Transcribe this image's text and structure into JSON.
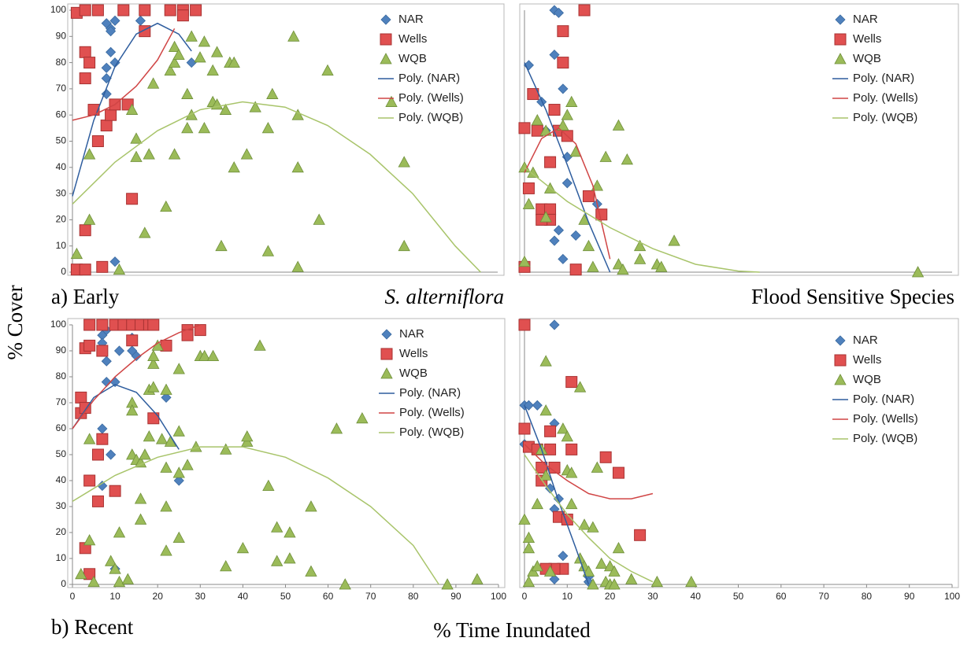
{
  "ylabel": "% Cover",
  "xlabel": "% Time Inundated",
  "row_labels": [
    "a) Early",
    "b) Recent"
  ],
  "chart_data": [
    {
      "type": "scatter",
      "title": "S. alterniflora",
      "title_style": "italic",
      "xlim": [
        0,
        100
      ],
      "ylim": [
        0,
        100
      ],
      "yticks": [
        0,
        10,
        20,
        30,
        40,
        50,
        60,
        70,
        80,
        90,
        100
      ],
      "legend": "upper right",
      "series": [
        {
          "name": "NAR",
          "color": "#4f81bd",
          "marker": "diamond",
          "x": [
            8,
            9,
            10,
            9,
            8,
            8,
            9,
            10,
            8,
            16,
            28,
            10
          ],
          "values": [
            95,
            93,
            96,
            92,
            74,
            78,
            84,
            80,
            68,
            96,
            80,
            4
          ]
        },
        {
          "name": "Wells",
          "color": "#e05050",
          "marker": "square",
          "x": [
            1,
            3,
            6,
            12,
            17,
            23,
            26,
            26,
            29,
            3,
            4,
            3,
            5,
            6,
            8,
            9,
            10,
            13,
            17,
            14,
            3,
            1,
            3,
            7
          ],
          "values": [
            99,
            100,
            100,
            100,
            100,
            100,
            100,
            98,
            100,
            84,
            80,
            74,
            62,
            50,
            56,
            60,
            64,
            64,
            92,
            28,
            16,
            1,
            1,
            2
          ]
        },
        {
          "name": "WQB",
          "color": "#9bbb59",
          "marker": "triangle",
          "x": [
            1,
            4,
            4,
            11,
            14,
            15,
            15,
            17,
            18,
            19,
            22,
            23,
            24,
            24,
            25,
            24,
            27,
            28,
            27,
            28,
            30,
            31,
            33,
            33,
            34,
            34,
            35,
            37,
            38,
            38,
            41,
            43,
            46,
            46,
            47,
            52,
            53,
            53,
            53,
            58,
            60,
            75,
            78,
            78,
            31,
            36
          ],
          "values": [
            7,
            20,
            45,
            1,
            62,
            51,
            44,
            15,
            45,
            72,
            25,
            77,
            86,
            80,
            83,
            45,
            68,
            60,
            55,
            90,
            82,
            88,
            77,
            65,
            64,
            84,
            10,
            80,
            80,
            40,
            45,
            63,
            55,
            8,
            68,
            90,
            60,
            40,
            2,
            20,
            77,
            65,
            42,
            10,
            55,
            62
          ]
        },
        {
          "name": "Poly. (NAR)",
          "color": "#2e5d9e",
          "marker": "line",
          "x": [
            0,
            5,
            10,
            15,
            20,
            25,
            28
          ],
          "values": [
            29,
            57.9,
            78.5,
            90.9,
            95,
            90.9,
            84.4
          ]
        },
        {
          "name": "Poly. (Wells)",
          "color": "#d04545",
          "marker": "line",
          "x": [
            0,
            5,
            10,
            15,
            20,
            24
          ],
          "values": [
            58,
            60,
            64,
            71,
            81,
            93
          ]
        },
        {
          "name": "Poly. (WQB)",
          "color": "#a8c46a",
          "marker": "line",
          "x": [
            0,
            10,
            20,
            30,
            40,
            50,
            60,
            70,
            80,
            90,
            96
          ],
          "values": [
            26,
            42,
            54,
            62,
            65,
            63,
            56,
            45,
            30,
            10,
            0
          ]
        }
      ]
    },
    {
      "type": "scatter",
      "title": "Flood Sensitive Species",
      "xlim": [
        0,
        100
      ],
      "ylim": [
        0,
        100
      ],
      "legend": "upper right",
      "series": [
        {
          "name": "NAR",
          "color": "#4f81bd",
          "marker": "diamond",
          "x": [
            7,
            8,
            7,
            1,
            4,
            9,
            10,
            8,
            9,
            7,
            12,
            17,
            10,
            5
          ],
          "values": [
            100,
            99,
            83,
            79,
            65,
            70,
            34,
            16,
            5,
            12,
            14,
            26,
            44,
            54
          ]
        },
        {
          "name": "Wells",
          "color": "#e05050",
          "marker": "square",
          "x": [
            14,
            9,
            9,
            0,
            2,
            7,
            3,
            8,
            10,
            6,
            1,
            4,
            6,
            6,
            4,
            15,
            18,
            12,
            0
          ],
          "values": [
            100,
            92,
            80,
            55,
            68,
            62,
            54,
            54,
            52,
            42,
            32,
            24,
            24,
            20,
            20,
            29,
            22,
            1,
            2
          ]
        },
        {
          "name": "WQB",
          "color": "#9bbb59",
          "marker": "triangle",
          "x": [
            0,
            1,
            0,
            2,
            3,
            5,
            6,
            5,
            9,
            10,
            11,
            12,
            19,
            17,
            22,
            24,
            14,
            15,
            16,
            22,
            23,
            27,
            27,
            31,
            32,
            35,
            92
          ],
          "values": [
            4,
            26,
            40,
            38,
            58,
            54,
            32,
            21,
            56,
            60,
            65,
            46,
            44,
            33,
            56,
            43,
            20,
            10,
            2,
            3,
            1,
            10,
            5,
            3,
            2,
            12,
            0
          ]
        },
        {
          "name": "Poly. (NAR)",
          "color": "#2e5d9e",
          "marker": "line",
          "x": [
            0,
            5,
            10,
            15,
            20
          ],
          "values": [
            80,
            62,
            41,
            19,
            0
          ]
        },
        {
          "name": "Poly. (Wells)",
          "color": "#d04545",
          "marker": "line",
          "x": [
            0,
            4,
            8,
            12,
            16,
            20
          ],
          "values": [
            38,
            51,
            55,
            49,
            33,
            5
          ]
        },
        {
          "name": "Poly. (WQB)",
          "color": "#a8c46a",
          "marker": "line",
          "x": [
            0,
            10,
            20,
            30,
            40,
            50,
            55
          ],
          "values": [
            40,
            27,
            17,
            9,
            3,
            0.4,
            0
          ]
        }
      ]
    },
    {
      "type": "scatter",
      "xlim": [
        0,
        100
      ],
      "ylim": [
        0,
        100
      ],
      "yticks": [
        0,
        10,
        20,
        30,
        40,
        50,
        60,
        70,
        80,
        90,
        100
      ],
      "xticks": [
        0,
        10,
        20,
        30,
        40,
        50,
        60,
        70,
        80,
        90,
        100
      ],
      "legend": "upper right",
      "series": [
        {
          "name": "NAR",
          "color": "#4f81bd",
          "marker": "diamond",
          "x": [
            8,
            7,
            7,
            8,
            8,
            10,
            11,
            14,
            14,
            15,
            22,
            7,
            7,
            9,
            25,
            10
          ],
          "values": [
            98,
            96,
            93,
            86,
            78,
            78,
            90,
            95,
            90,
            88,
            72,
            60,
            38,
            50,
            40,
            6
          ]
        },
        {
          "name": "Wells",
          "color": "#e05050",
          "marker": "square",
          "x": [
            2,
            2,
            3,
            3,
            4,
            4,
            7,
            7,
            10,
            12,
            14,
            16,
            18,
            19,
            14,
            22,
            27,
            27,
            30,
            19,
            7,
            6,
            6,
            4,
            10,
            3,
            4
          ],
          "values": [
            66,
            72,
            68,
            91,
            92,
            100,
            90,
            100,
            100,
            100,
            100,
            100,
            100,
            100,
            94,
            92,
            98,
            96,
            98,
            64,
            56,
            50,
            32,
            40,
            36,
            14,
            4
          ]
        },
        {
          "name": "WQB",
          "color": "#9bbb59",
          "marker": "triangle",
          "x": [
            2,
            4,
            4,
            5,
            9,
            10,
            11,
            11,
            13,
            14,
            14,
            14,
            15,
            16,
            16,
            16,
            17,
            18,
            18,
            19,
            19,
            19,
            20,
            21,
            22,
            22,
            22,
            22,
            23,
            25,
            25,
            25,
            25,
            27,
            29,
            30,
            31,
            33,
            36,
            36,
            40,
            41,
            41,
            44,
            46,
            48,
            48,
            51,
            51,
            56,
            56,
            62,
            64,
            68,
            88,
            95
          ],
          "values": [
            4,
            17,
            56,
            1,
            9,
            6,
            1,
            20,
            2,
            50,
            70,
            67,
            48,
            33,
            25,
            47,
            50,
            57,
            75,
            76,
            85,
            88,
            92,
            56,
            13,
            30,
            45,
            75,
            55,
            43,
            18,
            59,
            83,
            46,
            53,
            88,
            88,
            88,
            52,
            7,
            14,
            55,
            57,
            92,
            38,
            22,
            9,
            10,
            20,
            30,
            5,
            60,
            0,
            64,
            0,
            2
          ]
        },
        {
          "name": "Poly. (NAR)",
          "color": "#2e5d9e",
          "marker": "line",
          "x": [
            0,
            5,
            10,
            15,
            20,
            25
          ],
          "values": [
            60,
            72,
            77,
            74,
            65,
            52
          ]
        },
        {
          "name": "Poly. (Wells)",
          "color": "#d04545",
          "marker": "line",
          "x": [
            0,
            5,
            10,
            15,
            20,
            25,
            30
          ],
          "values": [
            60,
            71,
            80,
            87,
            93,
            97,
            100
          ]
        },
        {
          "name": "Poly. (WQB)",
          "color": "#a8c46a",
          "marker": "line",
          "x": [
            0,
            10,
            20,
            30,
            40,
            50,
            60,
            70,
            80,
            86
          ],
          "values": [
            32,
            42,
            49,
            53,
            53,
            49,
            41,
            30,
            15,
            0
          ]
        }
      ]
    },
    {
      "type": "scatter",
      "xlim": [
        0,
        100
      ],
      "ylim": [
        0,
        100
      ],
      "xticks": [
        0,
        10,
        20,
        30,
        40,
        50,
        60,
        70,
        80,
        90,
        100
      ],
      "legend": "upper right",
      "series": [
        {
          "name": "NAR",
          "color": "#4f81bd",
          "marker": "diamond",
          "x": [
            7,
            0,
            1,
            3,
            7,
            0,
            3,
            6,
            7,
            8,
            9,
            7,
            15,
            15
          ],
          "values": [
            100,
            69,
            69,
            69,
            62,
            54,
            52,
            37,
            29,
            33,
            11,
            2,
            3,
            1
          ]
        },
        {
          "name": "Wells",
          "color": "#e05050",
          "marker": "square",
          "x": [
            0,
            0,
            1,
            3,
            4,
            4,
            6,
            6,
            7,
            8,
            10,
            11,
            11,
            19,
            22,
            9,
            7,
            27,
            5
          ],
          "values": [
            100,
            60,
            53,
            52,
            40,
            45,
            52,
            59,
            45,
            26,
            25,
            52,
            78,
            49,
            43,
            6,
            6,
            19,
            6
          ]
        },
        {
          "name": "WQB",
          "color": "#9bbb59",
          "marker": "triangle",
          "x": [
            0,
            1,
            1,
            1,
            2,
            3,
            3,
            4,
            5,
            5,
            5,
            6,
            9,
            10,
            10,
            11,
            11,
            13,
            13,
            14,
            14,
            15,
            16,
            16,
            17,
            18,
            19,
            20,
            20,
            21,
            22,
            21,
            25,
            31,
            39
          ],
          "values": [
            25,
            1,
            14,
            18,
            5,
            31,
            7,
            52,
            86,
            67,
            42,
            5,
            60,
            57,
            44,
            43,
            31,
            76,
            10,
            7,
            23,
            5,
            0,
            22,
            45,
            8,
            1,
            0,
            7,
            5,
            14,
            0,
            2,
            1,
            1
          ]
        },
        {
          "name": "Poly. (NAR)",
          "color": "#2e5d9e",
          "marker": "line",
          "x": [
            0,
            4,
            8,
            12,
            15
          ],
          "values": [
            69,
            52,
            32,
            14,
            0
          ]
        },
        {
          "name": "Poly. (Wells)",
          "color": "#d04545",
          "marker": "line",
          "x": [
            0,
            5,
            10,
            15,
            20,
            25,
            30
          ],
          "values": [
            54,
            46,
            40,
            35,
            33,
            33,
            35
          ]
        },
        {
          "name": "Poly. (WQB)",
          "color": "#a8c46a",
          "marker": "line",
          "x": [
            0,
            5,
            10,
            15,
            20,
            25,
            30
          ],
          "values": [
            50,
            38,
            27,
            18,
            10,
            5,
            1
          ]
        }
      ]
    }
  ]
}
